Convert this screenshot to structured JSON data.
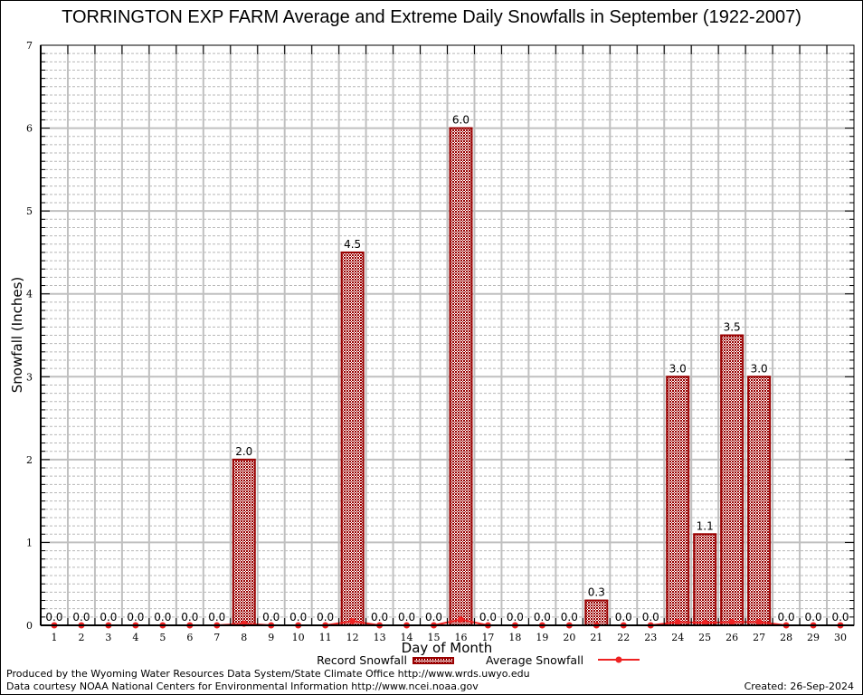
{
  "chart_data": {
    "type": "bar",
    "title": "TORRINGTON EXP FARM Average and Extreme Daily Snowfalls in September (1922-2007)",
    "xlabel": "Day of Month",
    "ylabel": "Snowfall (Inches)",
    "ylim": [
      0,
      7
    ],
    "yticks": [
      "0",
      "1",
      "2",
      "3",
      "4",
      "5",
      "6",
      "7"
    ],
    "ytick_values": [
      0,
      1,
      2,
      3,
      4,
      5,
      6,
      7
    ],
    "minor_step": 0.1,
    "grid": true,
    "categories": [
      "1",
      "2",
      "3",
      "4",
      "5",
      "6",
      "7",
      "8",
      "9",
      "10",
      "11",
      "12",
      "13",
      "14",
      "15",
      "16",
      "17",
      "18",
      "19",
      "20",
      "21",
      "22",
      "23",
      "24",
      "25",
      "26",
      "27",
      "28",
      "29",
      "30"
    ],
    "series": [
      {
        "name": "Record Snowfall",
        "type": "bar",
        "color": "#990000",
        "values": [
          0.0,
          0.0,
          0.0,
          0.0,
          0.0,
          0.0,
          0.0,
          2.0,
          0.0,
          0.0,
          0.0,
          4.5,
          0.0,
          0.0,
          0.0,
          6.0,
          0.0,
          0.0,
          0.0,
          0.0,
          0.3,
          0.0,
          0.0,
          3.0,
          1.1,
          3.5,
          3.0,
          0.0,
          0.0,
          0.0
        ],
        "labels": [
          "0.0",
          "0.0",
          "0.0",
          "0.0",
          "0.0",
          "0.0",
          "0.0",
          "2.0",
          "0.0",
          "0.0",
          "0.0",
          "4.5",
          "0.0",
          "0.0",
          "0.0",
          "6.0",
          "0.0",
          "0.0",
          "0.0",
          "0.0",
          "0.3",
          "0.0",
          "0.0",
          "3.0",
          "1.1",
          "3.5",
          "3.0",
          "0.0",
          "0.0",
          "0.0"
        ]
      },
      {
        "name": "Average Snowfall",
        "type": "line",
        "color": "#ee2222",
        "values": [
          0.0,
          0.0,
          0.0,
          0.0,
          0.0,
          0.0,
          0.0,
          0.02,
          0.0,
          0.0,
          0.0,
          0.05,
          0.0,
          0.0,
          0.0,
          0.07,
          0.0,
          0.0,
          0.0,
          0.0,
          0.0,
          0.0,
          0.0,
          0.04,
          0.03,
          0.04,
          0.04,
          0.0,
          0.0,
          0.0
        ]
      }
    ],
    "legend": {
      "placement": "bottom-center",
      "items": [
        "Record Snowfall",
        "Average Snowfall"
      ]
    }
  },
  "credits": {
    "line1": "Produced by the Wyoming Water Resources Data System/State Climate Office http://www.wrds.uwyo.edu",
    "line2": "Data courtesy NOAA National Centers for Environmental Information http://www.ncei.noaa.gov",
    "created": "Created: 26-Sep-2024"
  }
}
